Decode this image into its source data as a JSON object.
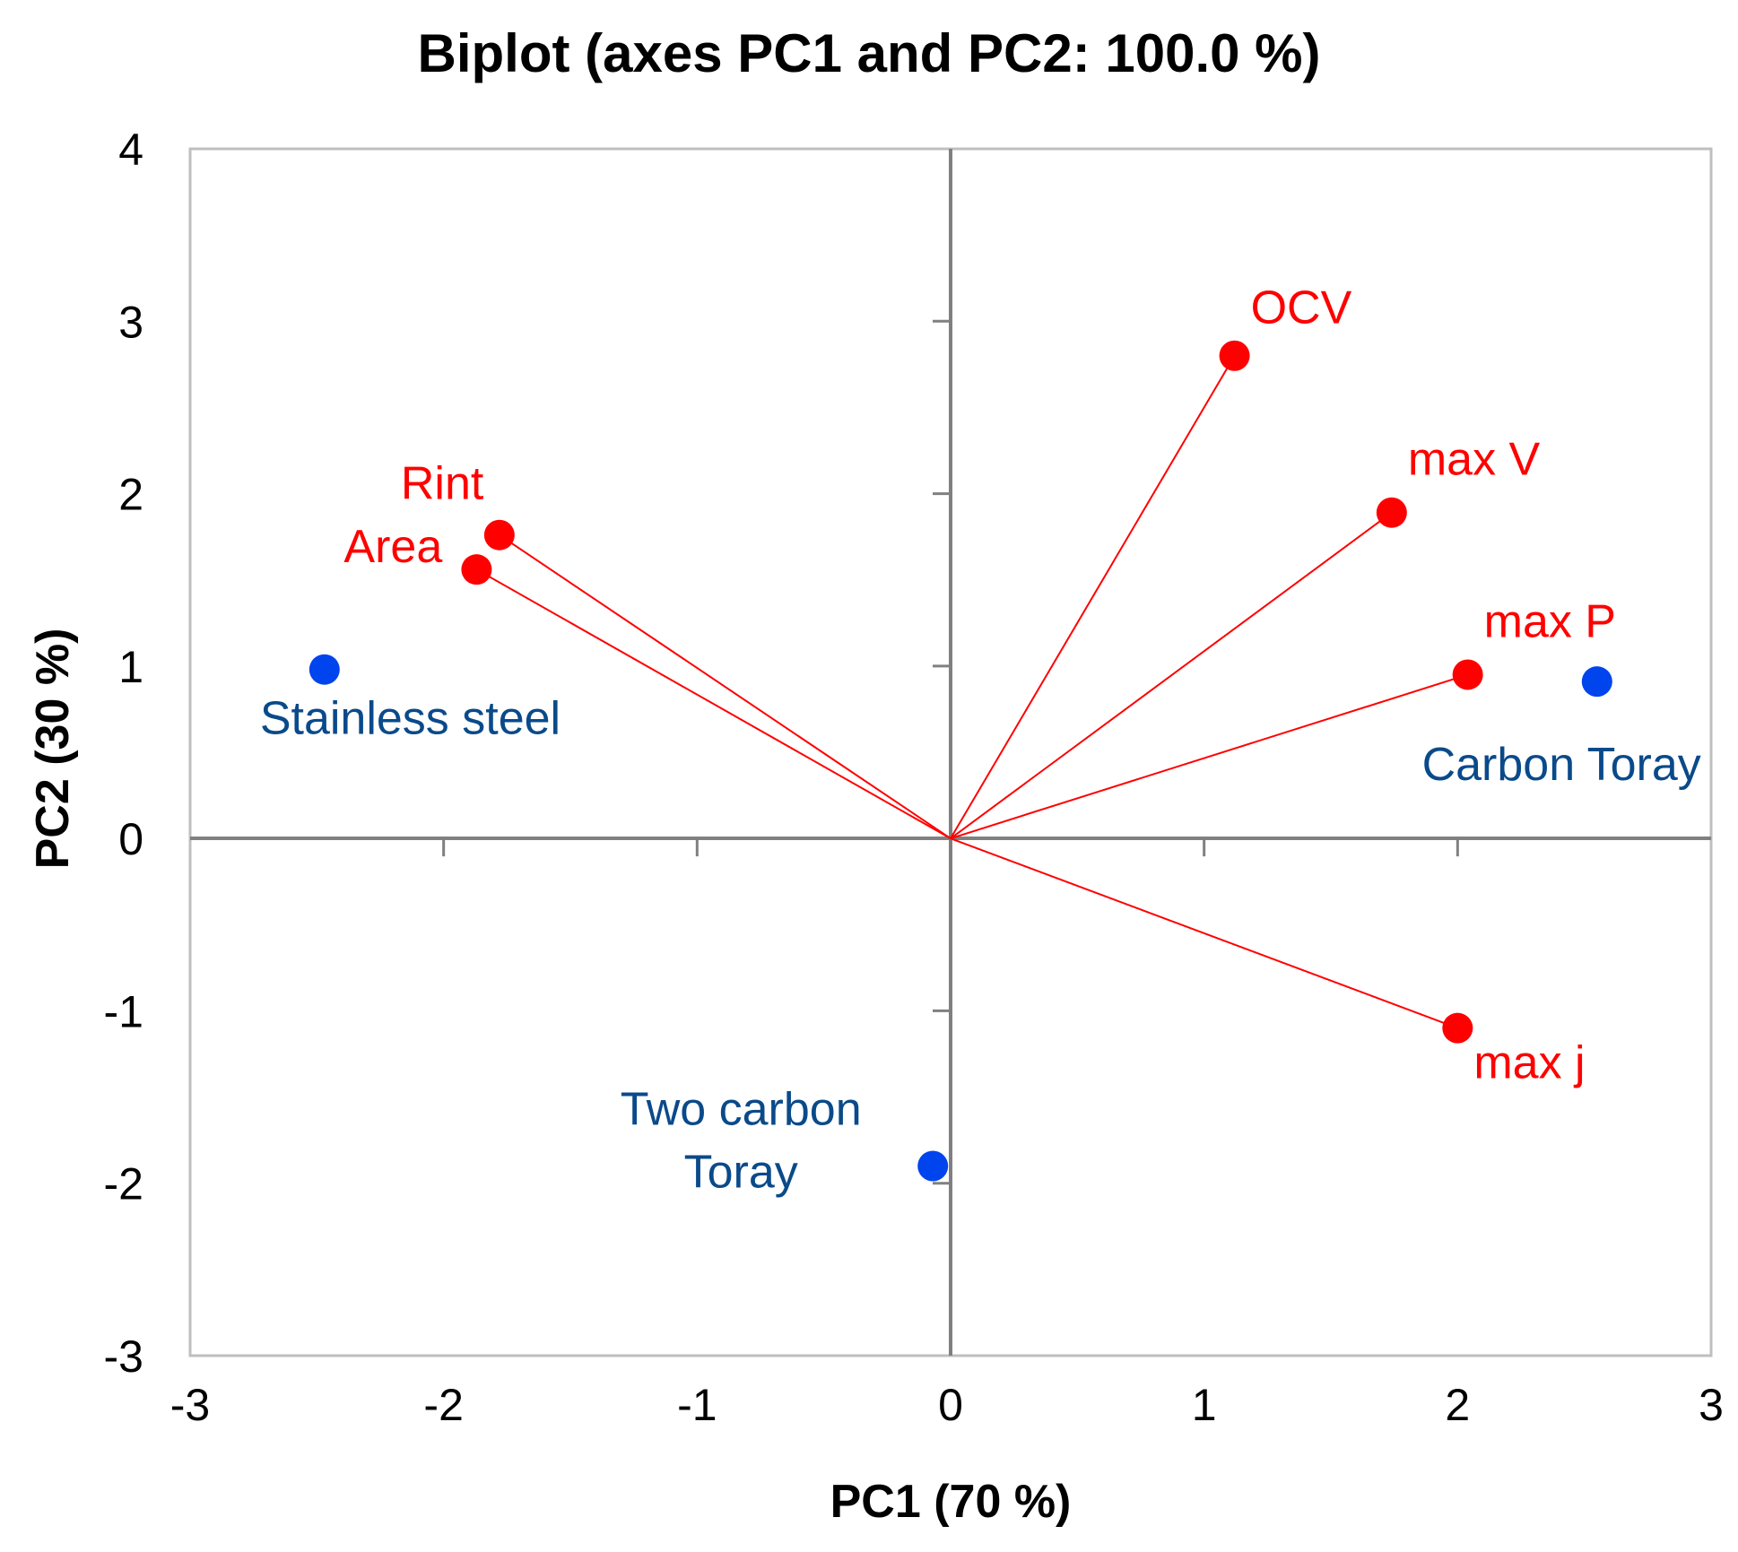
{
  "chart_data": {
    "type": "scatter",
    "title": "Biplot (axes PC1 and PC2: 100.0 %)",
    "xlabel": "PC1 (70 %)",
    "ylabel": "PC2 (30 %)",
    "xlim": [
      -3,
      3
    ],
    "ylim": [
      -3,
      4
    ],
    "x_ticks": [
      "-3",
      "-2",
      "-1",
      "0",
      "1",
      "2",
      "3"
    ],
    "y_ticks": [
      "4",
      "3",
      "2",
      "1",
      "0",
      "-1",
      "-2",
      "-3"
    ],
    "grid": false,
    "colors": {
      "variables": "#ff0000",
      "observations": "#0044ee",
      "observation_labels": "#0a4a8a",
      "frame": "#bfbfbf",
      "axes": "#808080"
    },
    "variables": [
      {
        "name": "Rint",
        "x": -1.78,
        "y": 1.76
      },
      {
        "name": "Area",
        "x": -1.87,
        "y": 1.56
      },
      {
        "name": "OCV",
        "x": 1.12,
        "y": 2.8
      },
      {
        "name": "max V",
        "x": 1.74,
        "y": 1.89
      },
      {
        "name": "max P",
        "x": 2.04,
        "y": 0.95
      },
      {
        "name": "max j",
        "x": 2.0,
        "y": -1.1
      }
    ],
    "observations": [
      {
        "name": "Stainless steel",
        "x": -2.47,
        "y": 0.98
      },
      {
        "name": "Carbon Toray",
        "x": 2.55,
        "y": 0.91
      },
      {
        "name": "Two carbon Toray",
        "x": -0.07,
        "y": -1.9
      }
    ]
  }
}
